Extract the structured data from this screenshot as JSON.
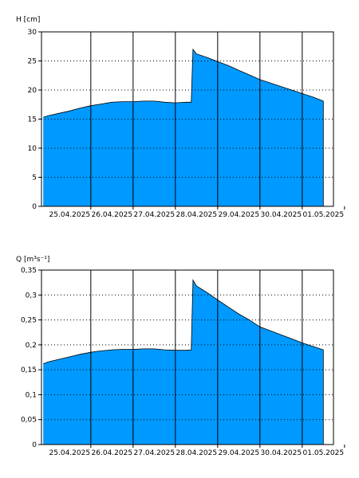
{
  "chart_data": [
    {
      "type": "area",
      "title": "",
      "ylabel": "H [cm]",
      "xlabel": "",
      "ylim": [
        0,
        30
      ],
      "yticks": [
        0,
        5,
        10,
        15,
        20,
        25,
        30
      ],
      "ytick_labels": [
        "0",
        "5",
        "10",
        "15",
        "20",
        "25",
        "30"
      ],
      "grid": true,
      "fill_color": "#0099ff",
      "x_labels": [
        "25.04.2025",
        "26.04.2025",
        "27.04.2025",
        "28.04.2025",
        "29.04.2025",
        "30.04.2025",
        "01.05.2025"
      ],
      "series": [
        {
          "x": [
            "24.04.2025 21:00",
            "25.04.2025 00:00",
            "25.04.2025 06:00",
            "25.04.2025 12:00",
            "25.04.2025 18:00",
            "26.04.2025 00:00",
            "26.04.2025 06:00",
            "26.04.2025 12:00",
            "26.04.2025 18:00",
            "27.04.2025 00:00",
            "27.04.2025 06:00",
            "27.04.2025 12:00",
            "27.04.2025 18:00",
            "28.04.2025 00:00",
            "28.04.2025 06:00",
            "28.04.2025 09:00",
            "28.04.2025 10:00",
            "28.04.2025 12:00",
            "28.04.2025 18:00",
            "29.04.2025 00:00",
            "29.04.2025 06:00",
            "29.04.2025 12:00",
            "29.04.2025 18:00",
            "30.04.2025 00:00",
            "30.04.2025 06:00",
            "30.04.2025 12:00",
            "30.04.2025 18:00",
            "01.05.2025 00:00",
            "01.05.2025 06:00",
            "01.05.2025 12:00"
          ],
          "y": [
            15.3,
            15.6,
            16.0,
            16.4,
            16.9,
            17.3,
            17.6,
            17.9,
            18.0,
            18.0,
            18.1,
            18.1,
            17.9,
            17.8,
            17.9,
            17.9,
            27.0,
            26.2,
            25.6,
            24.9,
            24.2,
            23.4,
            22.6,
            21.8,
            21.2,
            20.6,
            20.0,
            19.4,
            18.8,
            18.1
          ]
        }
      ]
    },
    {
      "type": "area",
      "title": "",
      "ylabel": "Q [m³s⁻¹]",
      "xlabel": "",
      "ylim": [
        0,
        0.35
      ],
      "yticks": [
        0,
        0.05,
        0.1,
        0.15,
        0.2,
        0.25,
        0.3,
        0.35
      ],
      "ytick_labels": [
        "0",
        "0,05",
        "0,1",
        "0,15",
        "0,2",
        "0,25",
        "0,3",
        "0,35"
      ],
      "grid": true,
      "fill_color": "#0099ff",
      "x_labels": [
        "25.04.2025",
        "26.04.2025",
        "27.04.2025",
        "28.04.2025",
        "29.04.2025",
        "30.04.2025",
        "01.05.2025"
      ],
      "series": [
        {
          "x": [
            "24.04.2025 21:00",
            "25.04.2025 00:00",
            "25.04.2025 06:00",
            "25.04.2025 12:00",
            "25.04.2025 18:00",
            "26.04.2025 00:00",
            "26.04.2025 06:00",
            "26.04.2025 12:00",
            "26.04.2025 18:00",
            "27.04.2025 00:00",
            "27.04.2025 06:00",
            "27.04.2025 12:00",
            "27.04.2025 18:00",
            "28.04.2025 00:00",
            "28.04.2025 06:00",
            "28.04.2025 09:00",
            "28.04.2025 10:00",
            "28.04.2025 12:00",
            "28.04.2025 18:00",
            "29.04.2025 00:00",
            "29.04.2025 06:00",
            "29.04.2025 12:00",
            "29.04.2025 18:00",
            "30.04.2025 00:00",
            "30.04.2025 06:00",
            "30.04.2025 12:00",
            "30.04.2025 18:00",
            "01.05.2025 00:00",
            "01.05.2025 06:00",
            "01.05.2025 12:00"
          ],
          "y": [
            0.162,
            0.166,
            0.171,
            0.176,
            0.181,
            0.185,
            0.188,
            0.19,
            0.191,
            0.191,
            0.192,
            0.192,
            0.19,
            0.189,
            0.189,
            0.19,
            0.33,
            0.318,
            0.305,
            0.29,
            0.276,
            0.262,
            0.25,
            0.236,
            0.228,
            0.22,
            0.212,
            0.204,
            0.197,
            0.19
          ]
        }
      ]
    }
  ]
}
